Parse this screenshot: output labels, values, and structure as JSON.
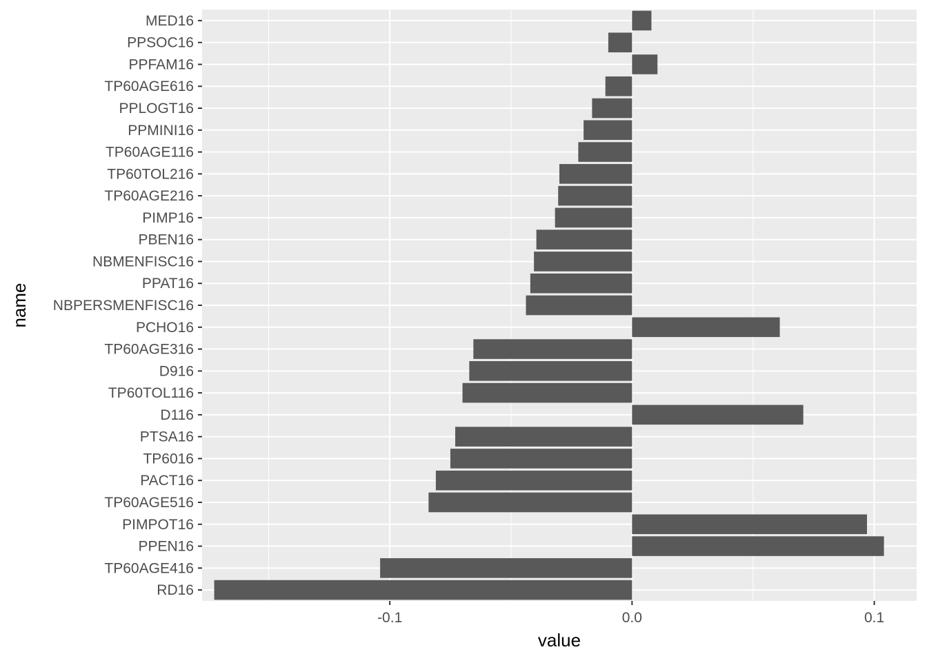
{
  "chart_data": {
    "type": "bar",
    "orientation": "horizontal",
    "xlabel": "value",
    "ylabel": "name",
    "xlim": [
      -0.1775,
      0.1175
    ],
    "x_ticks": [
      -0.1,
      0.0,
      0.1
    ],
    "x_tick_labels": [
      "-0.1",
      "0.0",
      "0.1"
    ],
    "grid": true,
    "legend": "none",
    "categories": [
      "MED16",
      "PPSOC16",
      "PPFAM16",
      "TP60AGE616",
      "PPLOGT16",
      "PPMINI16",
      "TP60AGE116",
      "TP60TOL216",
      "TP60AGE216",
      "PIMP16",
      "PBEN16",
      "NBMENFISC16",
      "PPAT16",
      "NBPERSMENFISC16",
      "PCHO16",
      "TP60AGE316",
      "D916",
      "TP60TOL116",
      "D116",
      "PTSA16",
      "TP6016",
      "PACT16",
      "TP60AGE516",
      "PIMPOT16",
      "PPEN16",
      "TP60AGE416",
      "RD16"
    ],
    "values": [
      0.008,
      -0.0098,
      0.0105,
      -0.011,
      -0.0165,
      -0.02,
      -0.0222,
      -0.03,
      -0.0305,
      -0.0318,
      -0.0395,
      -0.0405,
      -0.042,
      -0.0438,
      0.061,
      -0.0655,
      -0.0672,
      -0.07,
      0.0707,
      -0.073,
      -0.075,
      -0.081,
      -0.084,
      0.097,
      0.104,
      -0.104,
      -0.1725
    ],
    "colors": {
      "bar": "#595959",
      "panel": "#ebebeb",
      "grid_major": "#ffffff",
      "tick_mark": "#333333"
    }
  }
}
